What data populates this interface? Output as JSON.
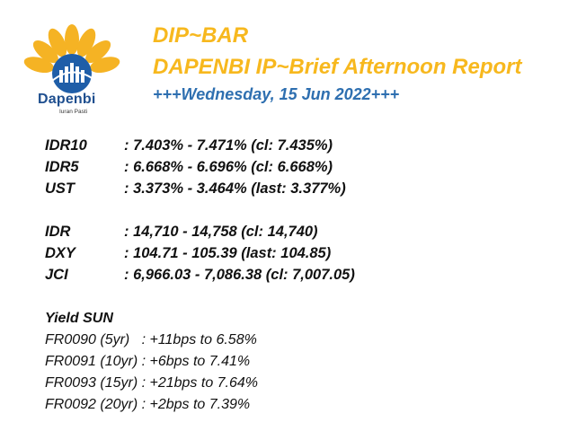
{
  "logo": {
    "name": "Dapenbi",
    "tagline": "Iuran Pasti",
    "colors": {
      "petal": "#f5b324",
      "center": "#1f5ea8",
      "bars": "#ffffff",
      "text": "#1f4f8f"
    }
  },
  "header": {
    "title": "DIP~BAR",
    "subtitle": "DAPENBI IP~Brief Afternoon Report",
    "date": "+++Wednesday, 15 Jun 2022+++"
  },
  "colors": {
    "title": "#f7b81e",
    "date": "#2e6fb0",
    "text": "#111111"
  },
  "rates": [
    {
      "label": "IDR10",
      "value": ": 7.403% - 7.471% (cl: 7.435%)"
    },
    {
      "label": "IDR5",
      "value": ": 6.668% - 6.696% (cl: 6.668%)"
    },
    {
      "label": "UST",
      "value": ": 3.373% - 3.464% (last: 3.377%)"
    }
  ],
  "markets": [
    {
      "label": "IDR",
      "value": ": 14,710 - 14,758 (cl: 14,740)"
    },
    {
      "label": "DXY",
      "value": ": 104.71 - 105.39 (last: 104.85)"
    },
    {
      "label": "JCI",
      "value": ": 6,966.03 - 7,086.38 (cl: 7,007.05)"
    }
  ],
  "yield_sun": {
    "heading": "Yield SUN",
    "items": [
      "FR0090 (5yr)   : +11bps to 6.58%",
      "FR0091 (10yr) : +6bps to 7.41%",
      "FR0093 (15yr) : +21bps to 7.64%",
      "FR0092 (20yr) : +2bps to 7.39%"
    ]
  }
}
